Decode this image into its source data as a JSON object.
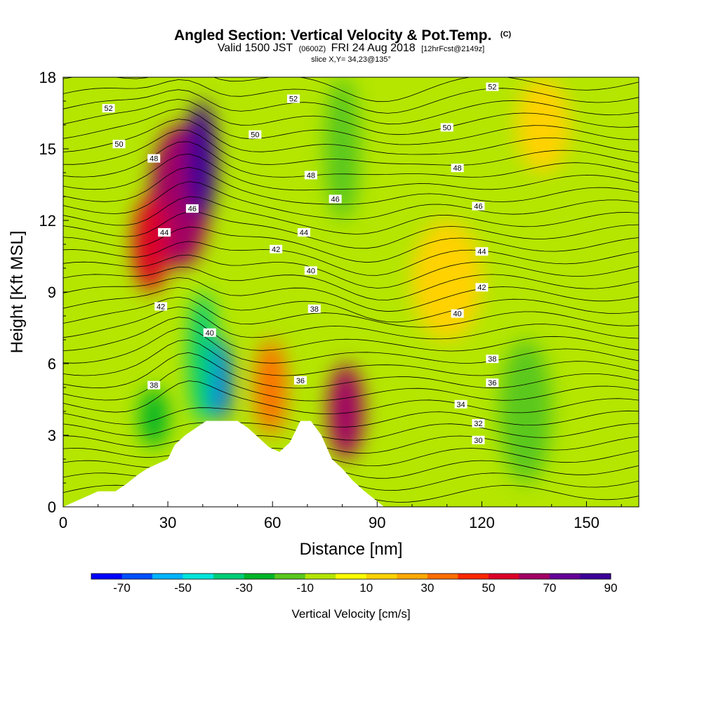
{
  "chart_data": {
    "type": "heatmap",
    "title": "Angled Section: Vertical Velocity & Pot.Temp.",
    "title_suffix": "(C)",
    "subtitle_parts": [
      "Valid 1500 JST",
      "(0600Z)",
      "FRI 24 Aug 2018",
      "[12hrFcst@2149z]"
    ],
    "slice_label": "slice X,Y= 34,23@135°",
    "xlabel": "Distance [nm]",
    "ylabel": "Height [Kft MSL]",
    "xlim": [
      0,
      165
    ],
    "ylim": [
      0,
      18
    ],
    "x_ticks": [
      0,
      30,
      60,
      90,
      120,
      150
    ],
    "y_ticks": [
      0,
      3,
      6,
      9,
      12,
      15,
      18
    ],
    "colorbar": {
      "title": "Vertical Velocity [cm/s]",
      "tick_values": [
        -70,
        -50,
        -30,
        -10,
        10,
        30,
        50,
        70,
        90
      ],
      "bins": [
        -80,
        -70,
        -60,
        -50,
        -40,
        -30,
        -20,
        -10,
        0,
        10,
        20,
        30,
        40,
        50,
        60,
        70,
        80,
        90
      ],
      "colors": [
        "#0000ff",
        "#0050ff",
        "#00b4ff",
        "#00e6dc",
        "#00cd78",
        "#00b428",
        "#5ac81e",
        "#b4e600",
        "#ffff00",
        "#ffd200",
        "#ffaa00",
        "#ff6e00",
        "#ff2800",
        "#dc0028",
        "#a00064",
        "#640096",
        "#3c0096"
      ]
    },
    "terrain_profile": {
      "x": [
        0,
        10,
        15,
        18,
        21,
        24,
        30,
        32,
        35,
        38,
        41,
        44,
        47,
        50,
        53,
        56,
        59,
        62,
        65,
        68,
        71,
        74,
        77,
        80,
        83,
        86,
        89,
        92
      ],
      "y": [
        0,
        0.65,
        0.65,
        0.95,
        1.3,
        1.6,
        2.0,
        2.6,
        3.0,
        3.3,
        3.6,
        3.6,
        3.6,
        3.6,
        3.3,
        2.9,
        2.5,
        2.3,
        2.7,
        3.6,
        3.6,
        3.0,
        2.0,
        1.6,
        1.1,
        0.7,
        0.35,
        0
      ]
    },
    "vertical_velocity_cells": [
      {
        "x": [
          25,
          42
        ],
        "y": [
          10,
          16
        ],
        "value": 60
      },
      {
        "x": [
          35,
          44
        ],
        "y": [
          12,
          17
        ],
        "value": 80
      },
      {
        "x": [
          38,
          43
        ],
        "y": [
          13,
          16
        ],
        "value": 90
      },
      {
        "x": [
          20,
          30
        ],
        "y": [
          9,
          13
        ],
        "value": 50
      },
      {
        "x": [
          42,
          48
        ],
        "y": [
          3.6,
          7
        ],
        "value": -70
      },
      {
        "x": [
          36,
          44
        ],
        "y": [
          3.5,
          9
        ],
        "value": -40
      },
      {
        "x": [
          22,
          30
        ],
        "y": [
          2.5,
          5
        ],
        "value": -30
      },
      {
        "x": [
          76,
          86
        ],
        "y": [
          2,
          6
        ],
        "value": 60
      },
      {
        "x": [
          55,
          64
        ],
        "y": [
          3,
          7
        ],
        "value": 30
      },
      {
        "x": [
          125,
          140
        ],
        "y": [
          1,
          7
        ],
        "value": -20
      },
      {
        "x": [
          75,
          85
        ],
        "y": [
          12,
          18
        ],
        "value": -20
      },
      {
        "x": [
          100,
          120
        ],
        "y": [
          7,
          12
        ],
        "value": 10
      },
      {
        "x": [
          130,
          145
        ],
        "y": [
          14,
          18
        ],
        "value": 10
      }
    ],
    "contour_labels": [
      {
        "value": "52",
        "x": 13,
        "y": 16.7
      },
      {
        "value": "52",
        "x": 66,
        "y": 17.1
      },
      {
        "value": "52",
        "x": 123,
        "y": 17.6
      },
      {
        "value": "50",
        "x": 16,
        "y": 15.2
      },
      {
        "value": "50",
        "x": 55,
        "y": 15.6
      },
      {
        "value": "50",
        "x": 110,
        "y": 15.9
      },
      {
        "value": "48",
        "x": 26,
        "y": 14.6
      },
      {
        "value": "48",
        "x": 71,
        "y": 13.9
      },
      {
        "value": "48",
        "x": 113,
        "y": 14.2
      },
      {
        "value": "46",
        "x": 37,
        "y": 12.5
      },
      {
        "value": "46",
        "x": 78,
        "y": 12.9
      },
      {
        "value": "46",
        "x": 119,
        "y": 12.6
      },
      {
        "value": "44",
        "x": 29,
        "y": 11.5
      },
      {
        "value": "44",
        "x": 69,
        "y": 11.5
      },
      {
        "value": "44",
        "x": 120,
        "y": 10.7
      },
      {
        "value": "42",
        "x": 61,
        "y": 10.8
      },
      {
        "value": "42",
        "x": 120,
        "y": 9.2
      },
      {
        "value": "42",
        "x": 28,
        "y": 8.4
      },
      {
        "value": "40",
        "x": 71,
        "y": 9.9
      },
      {
        "value": "40",
        "x": 113,
        "y": 8.1
      },
      {
        "value": "40",
        "x": 42,
        "y": 7.3
      },
      {
        "value": "38",
        "x": 72,
        "y": 8.3
      },
      {
        "value": "38",
        "x": 123,
        "y": 6.2
      },
      {
        "value": "38",
        "x": 26,
        "y": 5.1
      },
      {
        "value": "36",
        "x": 68,
        "y": 5.3
      },
      {
        "value": "36",
        "x": 123,
        "y": 5.2
      },
      {
        "value": "34",
        "x": 114,
        "y": 4.3
      },
      {
        "value": "32",
        "x": 119,
        "y": 3.5
      },
      {
        "value": "30",
        "x": 119,
        "y": 2.8
      }
    ]
  }
}
